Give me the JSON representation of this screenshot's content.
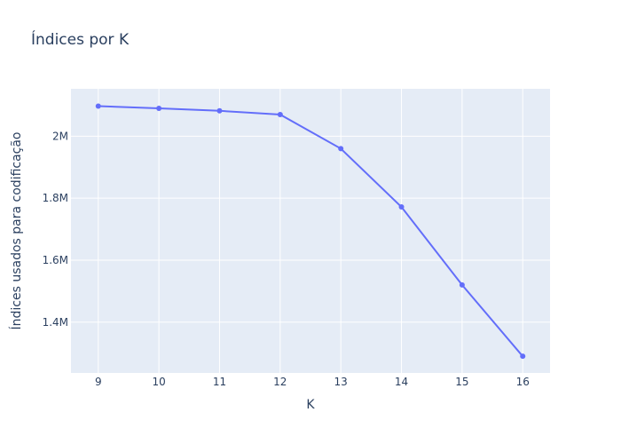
{
  "chart_data": {
    "type": "line",
    "title": "Índices por K",
    "xlabel": "K",
    "ylabel": "Índices usados para codificação",
    "x": [
      9,
      10,
      11,
      12,
      13,
      14,
      15,
      16
    ],
    "x_tick_labels": [
      "9",
      "10",
      "11",
      "12",
      "13",
      "14",
      "15",
      "16"
    ],
    "series": [
      {
        "values": [
          2097000,
          2090000,
          2082000,
          2070000,
          1960000,
          1772000,
          1520000,
          1290000
        ],
        "color": "#636efa"
      }
    ],
    "y_ticks": [
      1400000,
      1600000,
      1800000,
      2000000
    ],
    "y_tick_labels": [
      "1.4M",
      "1.6M",
      "1.8M",
      "2M"
    ],
    "xlim": [
      8.55,
      16.45
    ],
    "ylim": [
      1236000,
      2153000
    ],
    "grid": true,
    "background_color": "#e5ecf6"
  }
}
